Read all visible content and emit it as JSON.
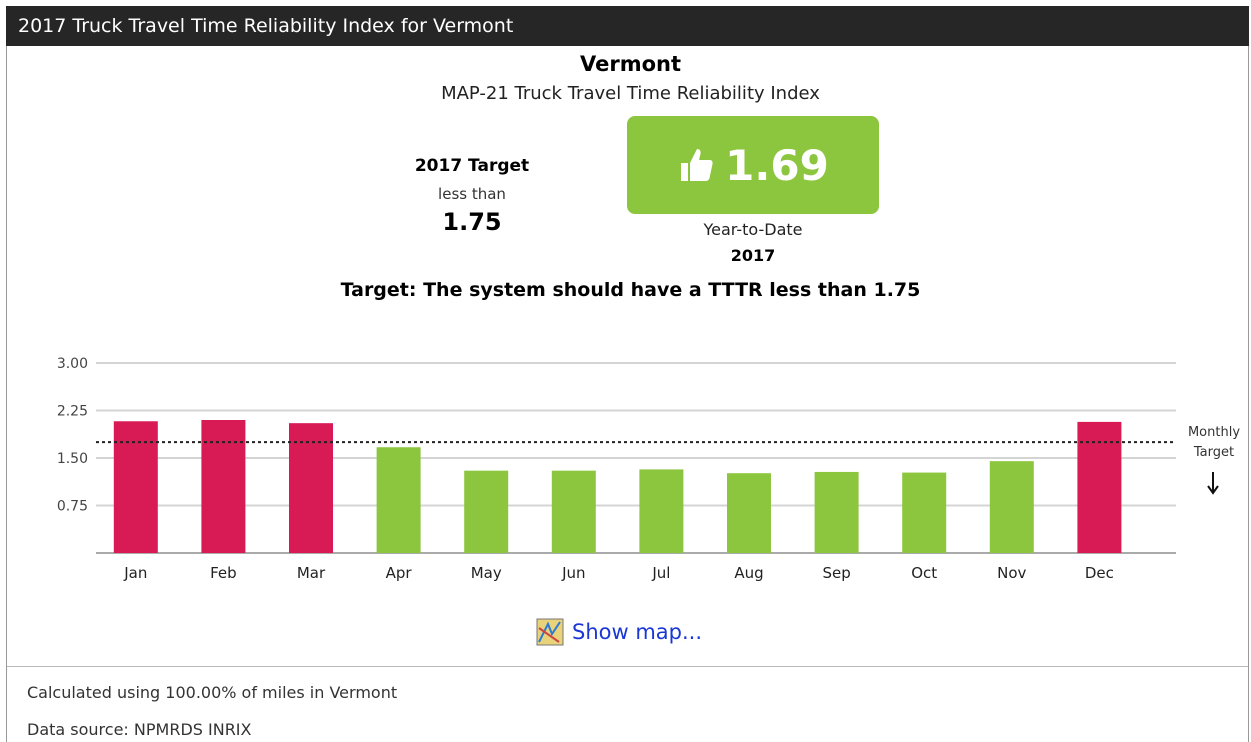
{
  "header": {
    "title": "2017 Truck Travel Time Reliability Index for Vermont"
  },
  "summary": {
    "region": "Vermont",
    "subtitle": "MAP-21 Truck Travel Time Reliability Index",
    "target_heading": "2017 Target",
    "target_qualifier": "less than",
    "target_value": "1.75",
    "ytd_value": "1.69",
    "ytd_label": "Year-to-Date",
    "ytd_year": "2017",
    "target_statement": "Target: The system should have a TTTR less than 1.75"
  },
  "chart_data": {
    "type": "bar",
    "categories": [
      "Jan",
      "Feb",
      "Mar",
      "Apr",
      "May",
      "Jun",
      "Jul",
      "Aug",
      "Sep",
      "Oct",
      "Nov",
      "Dec"
    ],
    "values": [
      2.08,
      2.1,
      2.05,
      1.67,
      1.3,
      1.3,
      1.32,
      1.26,
      1.28,
      1.27,
      1.45,
      2.07
    ],
    "colors": [
      "#d81b55",
      "#d81b55",
      "#d81b55",
      "#8cc63f",
      "#8cc63f",
      "#8cc63f",
      "#8cc63f",
      "#8cc63f",
      "#8cc63f",
      "#8cc63f",
      "#8cc63f",
      "#d81b55"
    ],
    "ylim": [
      0,
      3
    ],
    "yticks": [
      0.75,
      {
        "value": 1.5,
        "label": "1.50"
      },
      2.25,
      {
        "value": 3,
        "label": "3.00"
      }
    ],
    "grid": true,
    "target": 1.75,
    "target_label_lines": [
      "Monthly",
      "Target"
    ]
  },
  "link": {
    "text": "Show map..."
  },
  "footer": {
    "coverage": "Calculated using 100.00% of miles in Vermont",
    "source": "Data source: NPMRDS INRIX"
  }
}
